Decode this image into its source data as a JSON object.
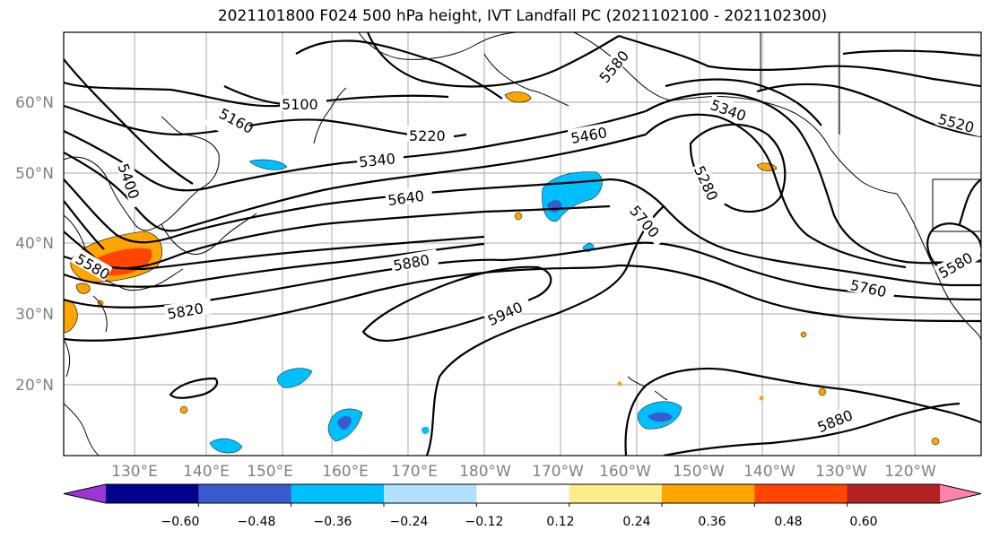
{
  "title": "2021101800 F024 500 hPa height, IVT Landfall PC (2021102100 - 2021102300)",
  "lat_labels": [
    "60°N",
    "50°N",
    "40°N",
    "30°N",
    "20°N"
  ],
  "lon_labels": [
    "130°E",
    "140°E",
    "150°E",
    "160°E",
    "170°E",
    "180°W",
    "170°W",
    "160°W",
    "150°W",
    "140°W",
    "130°W",
    "120°W"
  ],
  "colorbar": {
    "tick_labels": [
      "−0.60",
      "−0.48",
      "−0.36",
      "−0.24",
      "−0.12",
      "0.12",
      "0.24",
      "0.36",
      "0.48",
      "0.60"
    ],
    "colors": [
      "#9b35d6",
      "#00008b",
      "#3a5bd0",
      "#00bfff",
      "#b0e2ff",
      "#ffffff",
      "#ffec8b",
      "#ffa500",
      "#ff4500",
      "#b22222",
      "#ff82ab"
    ]
  },
  "contour_labels": [
    "5100",
    "5160",
    "5220",
    "5340",
    "5400",
    "5580",
    "5640",
    "5820",
    "5880",
    "5940",
    "5460",
    "5700",
    "5340",
    "5280",
    "5520",
    "5580",
    "5760",
    "5880",
    "5580"
  ]
}
